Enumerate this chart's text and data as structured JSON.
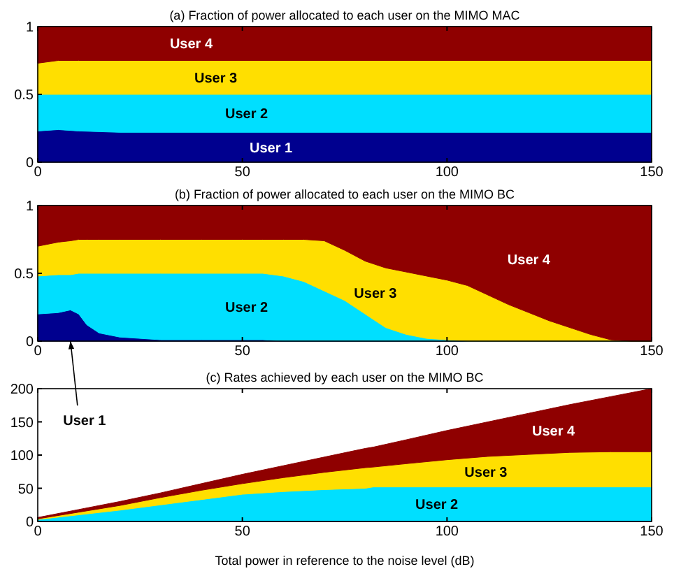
{
  "chart_data": [
    {
      "type": "area",
      "stacked": true,
      "title": "(a) Fraction of power allocated to each user on the MIMO MAC",
      "x": [
        0,
        5,
        10,
        20,
        150
      ],
      "xlim": [
        0,
        150
      ],
      "xticks": [
        0,
        50,
        100,
        150
      ],
      "ylim": [
        0,
        1
      ],
      "yticks": [
        0,
        0.5,
        1
      ],
      "grid": false,
      "series": [
        {
          "name": "User 1",
          "color": "#00008f",
          "values": [
            0.23,
            0.24,
            0.23,
            0.22,
            0.22
          ]
        },
        {
          "name": "User 2",
          "color": "#00dfff",
          "values": [
            0.27,
            0.26,
            0.27,
            0.28,
            0.28
          ]
        },
        {
          "name": "User 3",
          "color": "#ffdf00",
          "values": [
            0.23,
            0.25,
            0.25,
            0.25,
            0.25
          ]
        },
        {
          "name": "User 4",
          "color": "#8f0000",
          "values": [
            0.27,
            0.25,
            0.25,
            0.25,
            0.25
          ]
        }
      ]
    },
    {
      "type": "area",
      "stacked": true,
      "title": "(b) Fraction of power allocated to each user on the MIMO BC",
      "x": [
        0,
        5,
        8,
        10,
        12,
        15,
        20,
        30,
        40,
        50,
        55,
        60,
        65,
        70,
        75,
        80,
        85,
        90,
        95,
        100,
        105,
        110,
        115,
        120,
        125,
        130,
        135,
        140,
        145,
        150
      ],
      "xlim": [
        0,
        150
      ],
      "xticks": [
        0,
        50,
        100,
        150
      ],
      "ylim": [
        0,
        1
      ],
      "yticks": [
        0,
        0.5,
        1
      ],
      "grid": false,
      "annotations": [
        {
          "text": "User 1",
          "x": 8,
          "y": 0.02
        }
      ],
      "series": [
        {
          "color": "#00008f",
          "values": [
            0.2,
            0.21,
            0.23,
            0.2,
            0.12,
            0.06,
            0.03,
            0.01,
            0.01,
            0.01,
            0.01,
            0,
            0,
            0,
            0,
            0,
            0,
            0,
            0,
            0,
            0,
            0,
            0,
            0,
            0,
            0,
            0,
            0,
            0,
            0
          ]
        },
        {
          "name": "User 2",
          "color": "#00dfff",
          "values": [
            0.28,
            0.28,
            0.26,
            0.3,
            0.38,
            0.44,
            0.47,
            0.49,
            0.49,
            0.49,
            0.49,
            0.48,
            0.44,
            0.37,
            0.3,
            0.2,
            0.1,
            0.05,
            0.02,
            0.01,
            0,
            0,
            0,
            0,
            0,
            0,
            0,
            0,
            0,
            0
          ]
        },
        {
          "name": "User 3",
          "color": "#ffdf00",
          "values": [
            0.22,
            0.24,
            0.25,
            0.25,
            0.25,
            0.25,
            0.25,
            0.25,
            0.25,
            0.25,
            0.25,
            0.27,
            0.31,
            0.37,
            0.37,
            0.39,
            0.44,
            0.46,
            0.46,
            0.44,
            0.41,
            0.34,
            0.27,
            0.21,
            0.15,
            0.1,
            0.05,
            0.01,
            0,
            0
          ]
        },
        {
          "name": "User 4",
          "color": "#8f0000",
          "values": [
            0.3,
            0.27,
            0.26,
            0.25,
            0.25,
            0.25,
            0.25,
            0.25,
            0.25,
            0.25,
            0.25,
            0.25,
            0.25,
            0.26,
            0.33,
            0.41,
            0.46,
            0.49,
            0.52,
            0.55,
            0.59,
            0.66,
            0.73,
            0.79,
            0.85,
            0.9,
            0.95,
            0.99,
            1,
            1
          ]
        }
      ]
    },
    {
      "type": "area",
      "stacked": true,
      "title": "(c) Rates achieved by each user on the MIMO BC",
      "xlabel": "Total power in reference to the noise level (dB)",
      "x": [
        0,
        10,
        20,
        30,
        40,
        50,
        60,
        70,
        80,
        82,
        90,
        100,
        110,
        120,
        130,
        140,
        150
      ],
      "xlim": [
        0,
        150
      ],
      "xticks": [
        0,
        50,
        100,
        150
      ],
      "ylim": [
        0,
        200
      ],
      "yticks": [
        0,
        50,
        100,
        150,
        200
      ],
      "grid": false,
      "series": [
        {
          "color": "#00008f",
          "values": [
            1,
            1,
            1,
            1,
            1,
            1,
            1,
            1,
            1,
            1,
            1,
            1,
            1,
            1,
            1,
            1,
            1
          ]
        },
        {
          "name": "User 2",
          "color": "#00dfff",
          "values": [
            2,
            9,
            16,
            24,
            32,
            40,
            44,
            47,
            49,
            51,
            51,
            51,
            51,
            51,
            51,
            51,
            51
          ]
        },
        {
          "name": "User 3",
          "color": "#ffdf00",
          "values": [
            1,
            4,
            7,
            11,
            14,
            16,
            21,
            26,
            31,
            30,
            35,
            41,
            46,
            49,
            52,
            53,
            53
          ]
        },
        {
          "name": "User 4",
          "color": "#8f0000",
          "values": [
            2,
            4,
            6,
            7,
            10,
            14,
            18,
            23,
            29,
            30,
            36,
            44,
            52,
            62,
            72,
            83,
            95
          ]
        }
      ]
    }
  ]
}
